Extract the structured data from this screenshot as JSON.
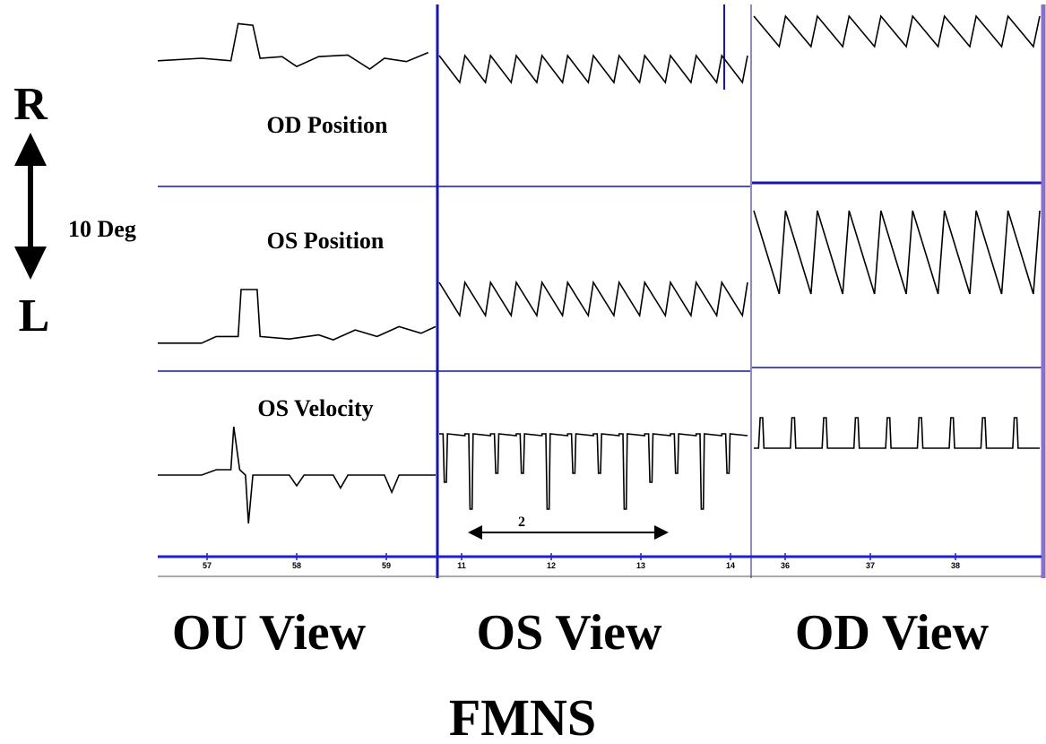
{
  "scale": {
    "up_label": "R",
    "down_label": "L",
    "magnitude_label": "10 Deg"
  },
  "row_labels": {
    "od_position": "OD Position",
    "os_position": "OS Position",
    "os_velocity": "OS Velocity"
  },
  "time_marker_label": "2",
  "panel_titles": [
    "OU View",
    "OS View",
    "OD View"
  ],
  "figure_title": "FMNS",
  "colors": {
    "trace": "#000000",
    "divider": "#1515b0",
    "panel_edge": "#8a8ac8",
    "axis_bar": "#2020d0"
  },
  "chart_data": {
    "type": "line",
    "panels": [
      {
        "name": "OU View",
        "x_ticks": [
          "57",
          "58",
          "59"
        ],
        "traces": {
          "od_position": [
            [
              0.0,
              0.65
            ],
            [
              0.3,
              0.62
            ],
            [
              0.5,
              0.65
            ],
            [
              0.55,
              0.2
            ],
            [
              0.65,
              0.22
            ],
            [
              0.7,
              0.62
            ],
            [
              0.85,
              0.6
            ],
            [
              0.95,
              0.72
            ],
            [
              1.1,
              0.6
            ],
            [
              1.3,
              0.58
            ],
            [
              1.45,
              0.75
            ],
            [
              1.55,
              0.62
            ],
            [
              1.7,
              0.66
            ],
            [
              1.85,
              0.55
            ]
          ],
          "os_position": [
            [
              0.0,
              0.9
            ],
            [
              0.3,
              0.9
            ],
            [
              0.4,
              0.82
            ],
            [
              0.55,
              0.82
            ],
            [
              0.57,
              0.25
            ],
            [
              0.68,
              0.25
            ],
            [
              0.7,
              0.82
            ],
            [
              0.9,
              0.85
            ],
            [
              1.1,
              0.8
            ],
            [
              1.2,
              0.86
            ],
            [
              1.35,
              0.74
            ],
            [
              1.5,
              0.82
            ],
            [
              1.65,
              0.7
            ],
            [
              1.8,
              0.78
            ],
            [
              1.9,
              0.7
            ]
          ],
          "os_velocity": [
            [
              0.0,
              0.5
            ],
            [
              0.3,
              0.5
            ],
            [
              0.4,
              0.45
            ],
            [
              0.5,
              0.45
            ],
            [
              0.52,
              0.05
            ],
            [
              0.56,
              0.45
            ],
            [
              0.6,
              0.5
            ],
            [
              0.62,
              0.95
            ],
            [
              0.65,
              0.5
            ],
            [
              0.9,
              0.5
            ],
            [
              0.95,
              0.6
            ],
            [
              1.0,
              0.5
            ],
            [
              1.2,
              0.5
            ],
            [
              1.25,
              0.62
            ],
            [
              1.3,
              0.5
            ],
            [
              1.55,
              0.5
            ],
            [
              1.6,
              0.66
            ],
            [
              1.65,
              0.5
            ],
            [
              1.9,
              0.5
            ]
          ]
        }
      },
      {
        "name": "OS View",
        "x_ticks": [
          "11",
          "12",
          "13",
          "14"
        ],
        "waveform": "jerk_nystagmus",
        "cycles": 12,
        "time_marker_seconds": 2
      },
      {
        "name": "OD View",
        "x_ticks": [
          "36",
          "37",
          "38"
        ],
        "waveform": "jerk_nystagmus",
        "cycles": 9
      }
    ],
    "rows": [
      "OD Position",
      "OS Position",
      "OS Velocity"
    ],
    "y_scale_label": "10 Deg",
    "xlabel": "",
    "ylabel": ""
  }
}
